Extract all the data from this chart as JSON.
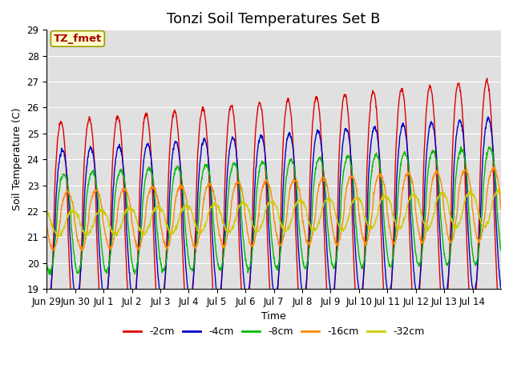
{
  "title": "Tonzi Soil Temperatures Set B",
  "xlabel": "Time",
  "ylabel": "Soil Temperature (C)",
  "annotation": "TZ_fmet",
  "ylim": [
    19.0,
    29.0
  ],
  "yticks": [
    19.0,
    20.0,
    21.0,
    22.0,
    23.0,
    24.0,
    25.0,
    26.0,
    27.0,
    28.0,
    29.0
  ],
  "xtick_labels": [
    "Jun 29",
    "Jun 30",
    "Jul 1",
    "Jul 2",
    "Jul 3",
    "Jul 4",
    "Jul 5",
    "Jul 6",
    "Jul 7",
    "Jul 8",
    "Jul 9",
    "Jul 10",
    "Jul 11",
    "Jul 12",
    "Jul 13",
    "Jul 14"
  ],
  "colors": {
    "-2cm": "#dd0000",
    "-4cm": "#0000cc",
    "-8cm": "#00bb00",
    "-16cm": "#ff8800",
    "-32cm": "#cccc00"
  },
  "bg_color": "#e0e0e0",
  "fig_bg": "#ffffff",
  "title_fontsize": 13,
  "label_fontsize": 9,
  "tick_fontsize": 8.5,
  "annotation_color": "#aa0000",
  "annotation_bg": "#ffffcc",
  "annotation_edge": "#999900"
}
